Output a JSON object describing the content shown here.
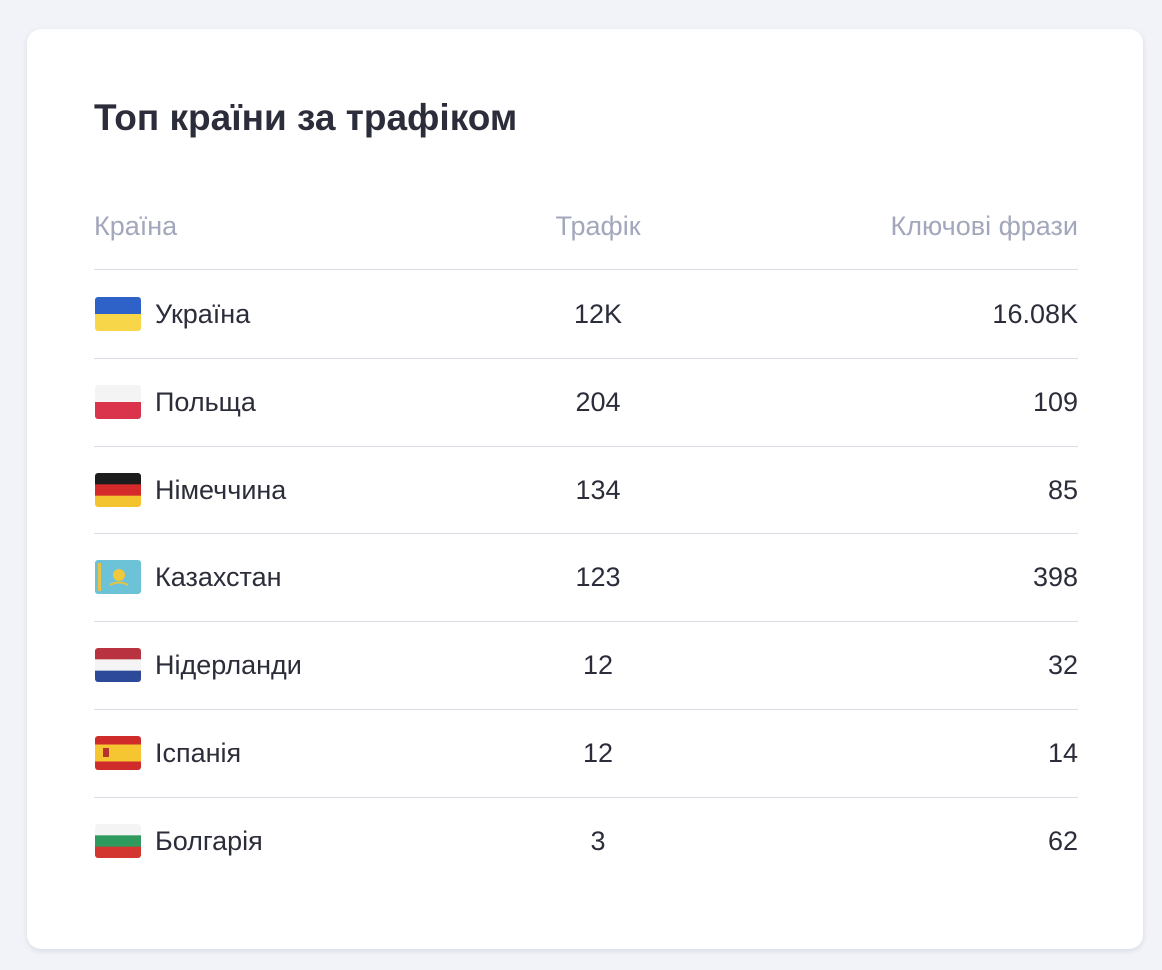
{
  "header": {
    "title": "Топ країни за трафіком"
  },
  "table": {
    "columns": [
      "Країна",
      "Трафік",
      "Ключові фрази"
    ],
    "rows": [
      [
        "Україна",
        "12K",
        "16.08K"
      ],
      [
        "Польща",
        "204",
        "109"
      ],
      [
        "Німеччина",
        "134",
        "85"
      ],
      [
        "Казахстан",
        "123",
        "398"
      ],
      [
        "Нідерланди",
        "12",
        "32"
      ],
      [
        "Іспанія",
        "12",
        "14"
      ],
      [
        "Болгарія",
        "3",
        "62"
      ]
    ]
  }
}
